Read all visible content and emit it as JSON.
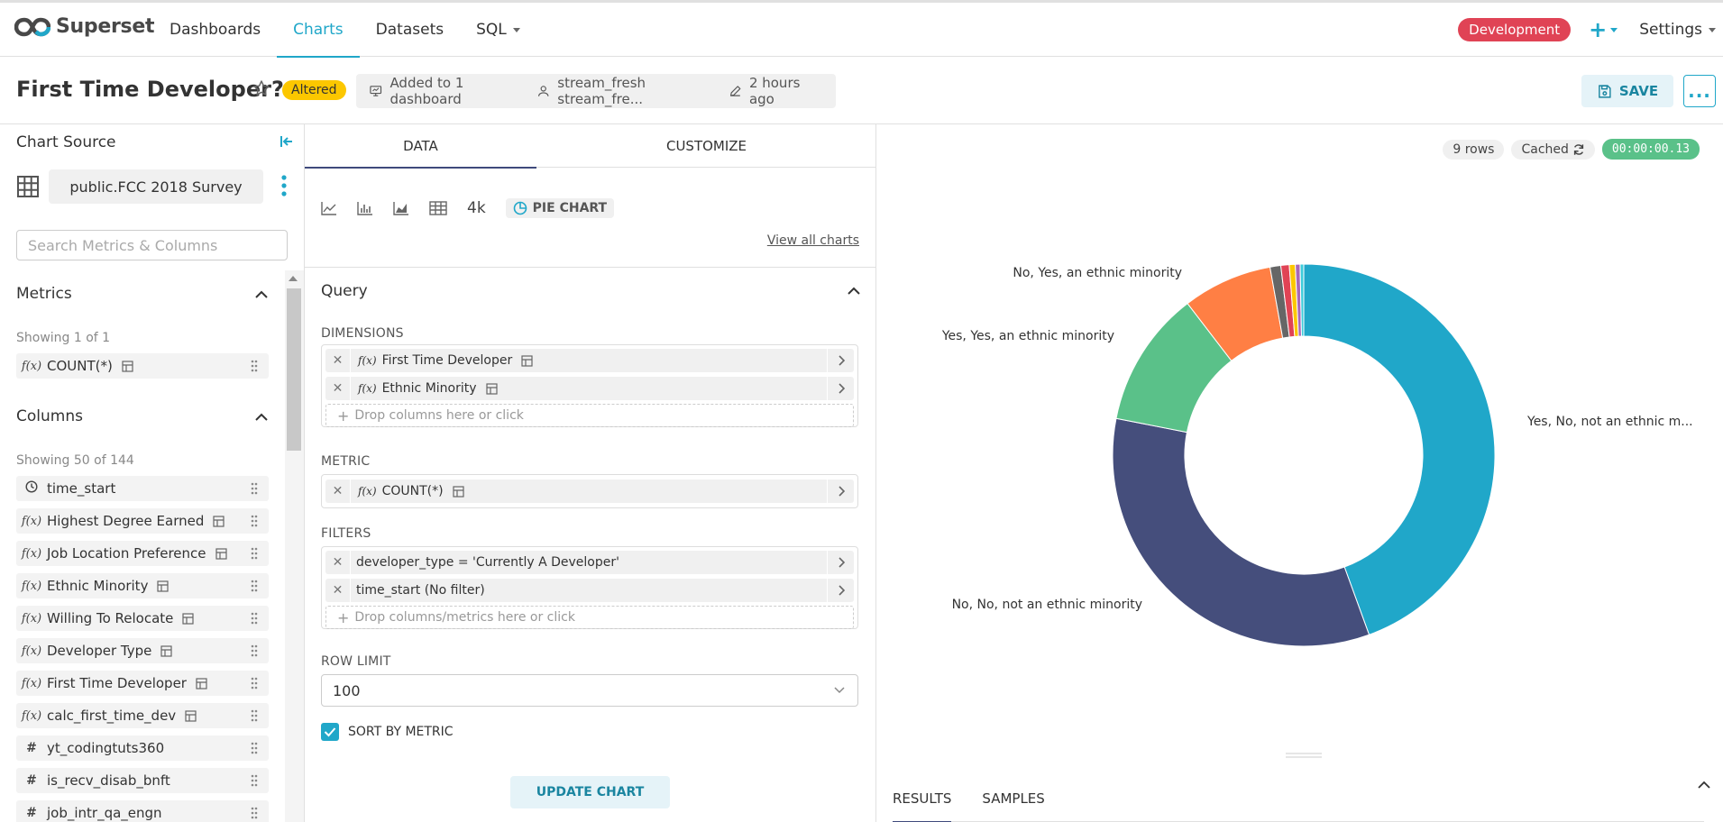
{
  "nav": {
    "brand": "Superset",
    "items": [
      {
        "label": "Dashboards",
        "active": false,
        "caret": false
      },
      {
        "label": "Charts",
        "active": true,
        "caret": false
      },
      {
        "label": "Datasets",
        "active": false,
        "caret": false
      },
      {
        "label": "SQL",
        "active": false,
        "caret": true
      }
    ],
    "env_badge": "Development",
    "plus": "+",
    "settings": "Settings"
  },
  "header": {
    "title": "First Time Developer?",
    "altered": "Altered",
    "dashboards": "Added to 1 dashboard",
    "owner": "stream_fresh stream_fre...",
    "modified": "2 hours ago",
    "save_label": "SAVE",
    "more": "..."
  },
  "source": {
    "title": "Chart Source",
    "dataset": "public.FCC 2018 Survey",
    "search_placeholder": "Search Metrics & Columns",
    "metrics_title": "Metrics",
    "metrics_showing": "Showing 1 of 1",
    "metrics": [
      {
        "label": "COUNT(*)",
        "icon": "f(x)"
      }
    ],
    "columns_title": "Columns",
    "columns_showing": "Showing 50 of 144",
    "columns": [
      {
        "label": "time_start",
        "icon": "clock",
        "table": false
      },
      {
        "label": "Highest Degree Earned",
        "icon": "f(x)",
        "table": true
      },
      {
        "label": "Job Location Preference",
        "icon": "f(x)",
        "table": true
      },
      {
        "label": "Ethnic Minority",
        "icon": "f(x)",
        "table": true
      },
      {
        "label": "Willing To Relocate",
        "icon": "f(x)",
        "table": true
      },
      {
        "label": "Developer Type",
        "icon": "f(x)",
        "table": true
      },
      {
        "label": "First Time Developer",
        "icon": "f(x)",
        "table": true
      },
      {
        "label": "calc_first_time_dev",
        "icon": "f(x)",
        "table": true
      },
      {
        "label": "yt_codingtuts360",
        "icon": "#",
        "table": false
      },
      {
        "label": "is_recv_disab_bnft",
        "icon": "#",
        "table": false
      },
      {
        "label": "job_intr_qa_engn",
        "icon": "#",
        "table": false
      }
    ]
  },
  "controls": {
    "tab_data": "DATA",
    "tab_customize": "CUSTOMIZE",
    "viz_4k": "4k",
    "viz_selected": "PIE CHART",
    "view_all": "View all charts",
    "query_title": "Query",
    "dimensions_label": "DIMENSIONS",
    "dimensions": [
      "First Time Developer",
      "Ethnic Minority"
    ],
    "dimensions_drop": "Drop columns here or click",
    "metric_label": "METRIC",
    "metric": "COUNT(*)",
    "filters_label": "FILTERS",
    "filters": [
      "developer_type = 'Currently A Developer'",
      "time_start (No filter)"
    ],
    "filters_drop": "Drop columns/metrics here or click",
    "row_limit_label": "ROW LIMIT",
    "row_limit": "100",
    "sort_label": "SORT BY METRIC",
    "update_label": "UPDATE CHART"
  },
  "results": {
    "rows": "9 rows",
    "cached": "Cached",
    "timer": "00:00:00.13",
    "tab_results": "RESULTS",
    "tab_samples": "SAMPLES"
  },
  "chart_data": {
    "type": "pie",
    "donut": true,
    "slices": [
      {
        "name": "Yes, No, not an ethnic m...",
        "value": 44.0,
        "color": "#20a7c9"
      },
      {
        "name": "No, No, not an ethnic minority",
        "value": 33.3,
        "color": "#454e7c"
      },
      {
        "name": "Yes, Yes, an ethnic minority",
        "value": 11.4,
        "color": "#5ac189"
      },
      {
        "name": "No, Yes, an ethnic minority",
        "value": 7.5,
        "color": "#ff7f44"
      },
      {
        "name": "",
        "value": 0.9,
        "color": "#666666"
      },
      {
        "name": "",
        "value": 0.7,
        "color": "#e04355"
      },
      {
        "name": "",
        "value": 0.5,
        "color": "#fcc700"
      },
      {
        "name": "",
        "value": 0.4,
        "color": "#a868b7"
      },
      {
        "name": "",
        "value": 0.3,
        "color": "#3cccdb"
      }
    ]
  }
}
